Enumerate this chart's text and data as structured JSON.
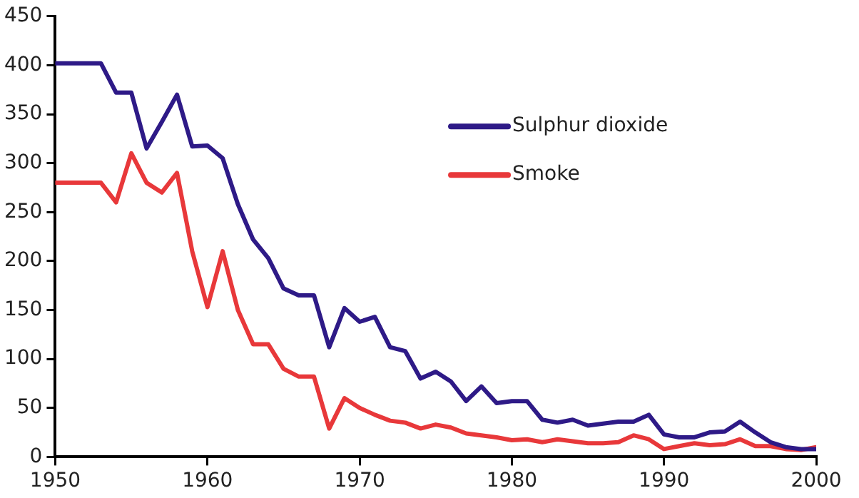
{
  "chart_data": {
    "type": "line",
    "x": [
      1950,
      1951,
      1952,
      1953,
      1954,
      1955,
      1956,
      1957,
      1958,
      1959,
      1960,
      1961,
      1962,
      1963,
      1964,
      1965,
      1966,
      1967,
      1968,
      1969,
      1970,
      1971,
      1972,
      1973,
      1974,
      1975,
      1976,
      1977,
      1978,
      1979,
      1980,
      1981,
      1982,
      1983,
      1984,
      1985,
      1986,
      1987,
      1988,
      1989,
      1990,
      1991,
      1992,
      1993,
      1994,
      1995,
      1996,
      1997,
      1998,
      1999,
      2000
    ],
    "series": [
      {
        "name": "Sulphur dioxide",
        "color": "#2e1a87",
        "values": [
          402,
          402,
          402,
          402,
          372,
          372,
          315,
          342,
          370,
          317,
          318,
          305,
          258,
          222,
          203,
          172,
          165,
          165,
          112,
          152,
          138,
          143,
          112,
          108,
          80,
          87,
          77,
          57,
          72,
          55,
          57,
          57,
          38,
          35,
          38,
          32,
          34,
          36,
          36,
          43,
          23,
          20,
          20,
          25,
          26,
          36,
          25,
          15,
          10,
          8,
          8
        ]
      },
      {
        "name": "Smoke",
        "color": "#e8383a",
        "values": [
          280,
          280,
          280,
          280,
          260,
          310,
          280,
          270,
          290,
          210,
          153,
          210,
          150,
          115,
          115,
          90,
          82,
          82,
          29,
          60,
          50,
          43,
          37,
          35,
          29,
          33,
          30,
          24,
          22,
          20,
          17,
          18,
          15,
          18,
          16,
          14,
          14,
          15,
          22,
          18,
          8,
          11,
          14,
          12,
          13,
          18,
          11,
          11,
          8,
          7,
          10
        ]
      }
    ],
    "xlim": [
      1950,
      2000
    ],
    "xticks": [
      1950,
      1960,
      1970,
      1980,
      1990,
      2000
    ],
    "ylim": [
      0,
      450
    ],
    "yticks": [
      0,
      50,
      100,
      150,
      200,
      250,
      300,
      350,
      400,
      450
    ],
    "grid": false,
    "legend": "top right",
    "marker": "none",
    "line_style": "solid"
  }
}
